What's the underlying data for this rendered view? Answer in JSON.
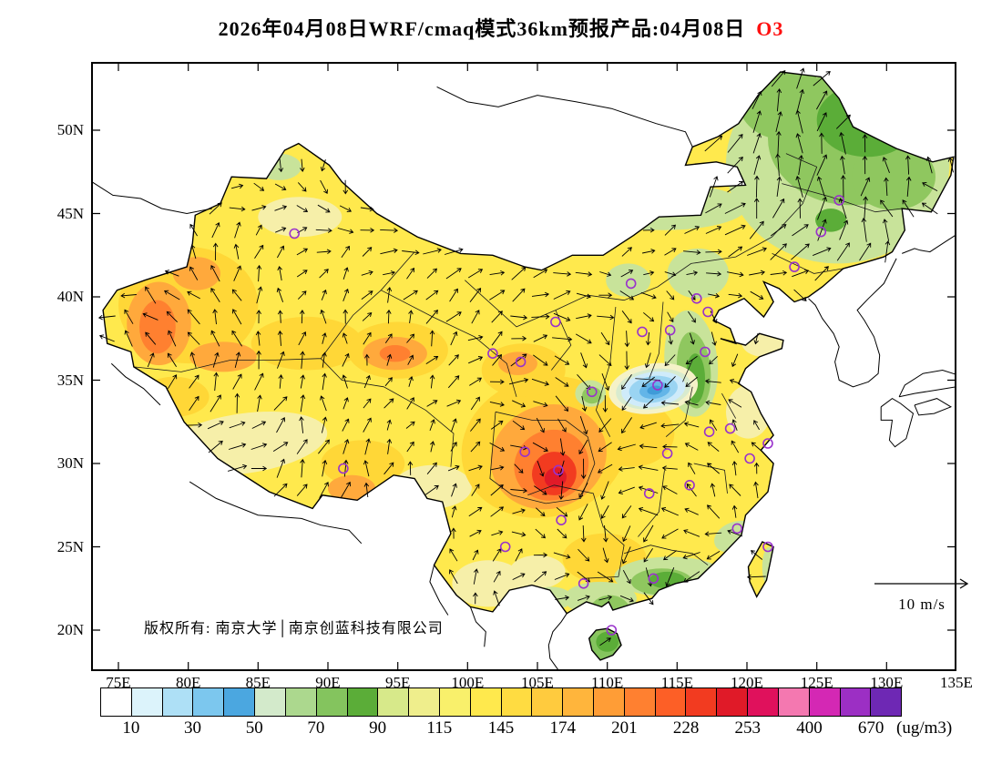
{
  "title": {
    "prefix": "2026年04月08日WRF/cmaq模式36km预报产品:04月08日",
    "species": "O3"
  },
  "map_annotations": {
    "copyright": "版权所有: 南京大学│南京创蓝科技有限公司",
    "wind_scale_label": "10 m/s"
  },
  "axes": {
    "lat_labels": [
      "50N",
      "45N",
      "40N",
      "35N",
      "30N",
      "25N",
      "20N"
    ],
    "lon_labels": [
      "75E",
      "80E",
      "85E",
      "90E",
      "95E",
      "100E",
      "105E",
      "110E",
      "115E",
      "120E",
      "125E",
      "130E",
      "135E"
    ]
  },
  "colorbar": {
    "tick_labels": [
      "10",
      "30",
      "50",
      "70",
      "90",
      "115",
      "145",
      "174",
      "201",
      "228",
      "253",
      "400",
      "670"
    ],
    "unit_label": "(ug/m3)"
  },
  "chart_data": {
    "type": "heatmap",
    "title": "2026年04月08日WRF/cmaq模式36km预报产品:04月08日 O3",
    "variable": "O3 surface concentration forecast",
    "model": "WRF/cmaq 36km",
    "unit": "ug/m3",
    "xlabel": "Longitude (deg E)",
    "ylabel": "Latitude (deg N)",
    "xlim": [
      73,
      135
    ],
    "ylim": [
      17.5,
      54.1
    ],
    "levels": [
      10,
      30,
      50,
      70,
      90,
      115,
      145,
      174,
      201,
      228,
      253,
      400,
      670
    ],
    "palette": [
      "#FFFFFF",
      "#DCF3FB",
      "#AEE0F6",
      "#7CC7EE",
      "#4BA7E0",
      "#D3EACB",
      "#ACD88E",
      "#84C45E",
      "#5BAD38",
      "#D7E98A",
      "#EFEE8C",
      "#F9F06B",
      "#FFE94D",
      "#FFDC41",
      "#FFCB3E",
      "#FFB53C",
      "#FF9D36",
      "#FF8030",
      "#FD5F26",
      "#F23B20",
      "#E01A28",
      "#E0115C",
      "#F478B0",
      "#D428B4",
      "#9C2FC4",
      "#6E28B4"
    ],
    "wind_reference_ms": 10,
    "city_markers": [
      [
        87.6,
        43.8
      ],
      [
        126.6,
        45.8
      ],
      [
        125.3,
        43.9
      ],
      [
        123.4,
        41.8
      ],
      [
        111.7,
        40.8
      ],
      [
        116.4,
        39.9
      ],
      [
        117.2,
        39.1
      ],
      [
        114.5,
        38.0
      ],
      [
        112.5,
        37.9
      ],
      [
        106.3,
        38.5
      ],
      [
        103.8,
        36.1
      ],
      [
        101.8,
        36.6
      ],
      [
        108.9,
        34.3
      ],
      [
        113.6,
        34.7
      ],
      [
        117.0,
        36.7
      ],
      [
        117.3,
        31.9
      ],
      [
        118.8,
        32.1
      ],
      [
        121.5,
        31.2
      ],
      [
        120.2,
        30.3
      ],
      [
        114.3,
        30.6
      ],
      [
        104.1,
        30.7
      ],
      [
        106.5,
        29.6
      ],
      [
        91.1,
        29.7
      ],
      [
        106.7,
        26.6
      ],
      [
        113.0,
        28.2
      ],
      [
        115.9,
        28.7
      ],
      [
        119.3,
        26.1
      ],
      [
        121.5,
        25.0
      ],
      [
        113.3,
        23.1
      ],
      [
        108.3,
        22.8
      ],
      [
        110.3,
        20.0
      ],
      [
        102.7,
        25.0
      ]
    ],
    "features": [
      {
        "description": "Localized O3 minimum pocket (10-50 ug/m3)",
        "lon": 113.3,
        "lat": 34.5
      },
      {
        "description": "O3 maximum core (228-253 ug/m3) over Sichuan-Chongqing",
        "lon": 106.2,
        "lat": 29.4
      },
      {
        "description": "Elevated O3 (174-228 ug/m3) in western Xinjiang",
        "lon": 78.0,
        "lat": 38.3
      },
      {
        "description": "Moderate O3 (70-115 ug/m3, greens) across Northeast China",
        "lon": 127.0,
        "lat": 48.0
      },
      {
        "description": "Moderate O3 (70-115 ug/m3) along the south coast and Hainan",
        "lon": 112.0,
        "lat": 22.5
      },
      {
        "description": "Dominant background 115-145 ug/m3 (bright yellow) over most of China",
        "lon": 100.0,
        "lat": 35.0
      }
    ]
  }
}
